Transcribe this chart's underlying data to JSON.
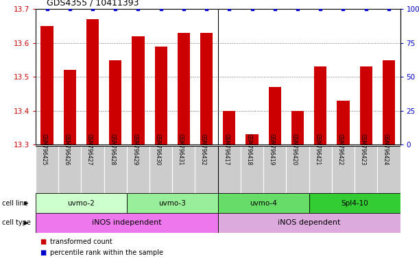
{
  "title": "GDS4355 / 10411393",
  "samples": [
    "GSM796425",
    "GSM796426",
    "GSM796427",
    "GSM796428",
    "GSM796429",
    "GSM796430",
    "GSM796431",
    "GSM796432",
    "GSM796417",
    "GSM796418",
    "GSM796419",
    "GSM796420",
    "GSM796421",
    "GSM796422",
    "GSM796423",
    "GSM796424"
  ],
  "transformed_count": [
    13.65,
    13.52,
    13.67,
    13.55,
    13.62,
    13.59,
    13.63,
    13.63,
    13.4,
    13.33,
    13.47,
    13.4,
    13.53,
    13.43,
    13.53,
    13.55
  ],
  "percentile": [
    100,
    100,
    100,
    100,
    100,
    100,
    100,
    100,
    100,
    100,
    100,
    100,
    100,
    100,
    100,
    100
  ],
  "ylim_left": [
    13.3,
    13.7
  ],
  "ylim_right": [
    0,
    100
  ],
  "yticks_left": [
    13.3,
    13.4,
    13.5,
    13.6,
    13.7
  ],
  "yticks_right": [
    0,
    25,
    50,
    75,
    100
  ],
  "bar_color": "#cc0000",
  "percentile_color": "#0000cc",
  "cell_lines": [
    {
      "label": "uvmo-2",
      "start": 0,
      "end": 4,
      "color": "#ccffcc"
    },
    {
      "label": "uvmo-3",
      "start": 4,
      "end": 8,
      "color": "#99ee99"
    },
    {
      "label": "uvmo-4",
      "start": 8,
      "end": 12,
      "color": "#66dd66"
    },
    {
      "label": "Spl4-10",
      "start": 12,
      "end": 16,
      "color": "#33cc33"
    }
  ],
  "cell_types": [
    {
      "label": "iNOS independent",
      "start": 0,
      "end": 8,
      "color": "#ee77ee"
    },
    {
      "label": "iNOS dependent",
      "start": 8,
      "end": 16,
      "color": "#ddaadd"
    }
  ],
  "grid_color": "#666666",
  "background_color": "#ffffff",
  "bar_color_left_axis": "#cc0000",
  "right_axis_color": "#0000cc",
  "sample_box_color": "#cccccc",
  "separator_color": "#000000"
}
